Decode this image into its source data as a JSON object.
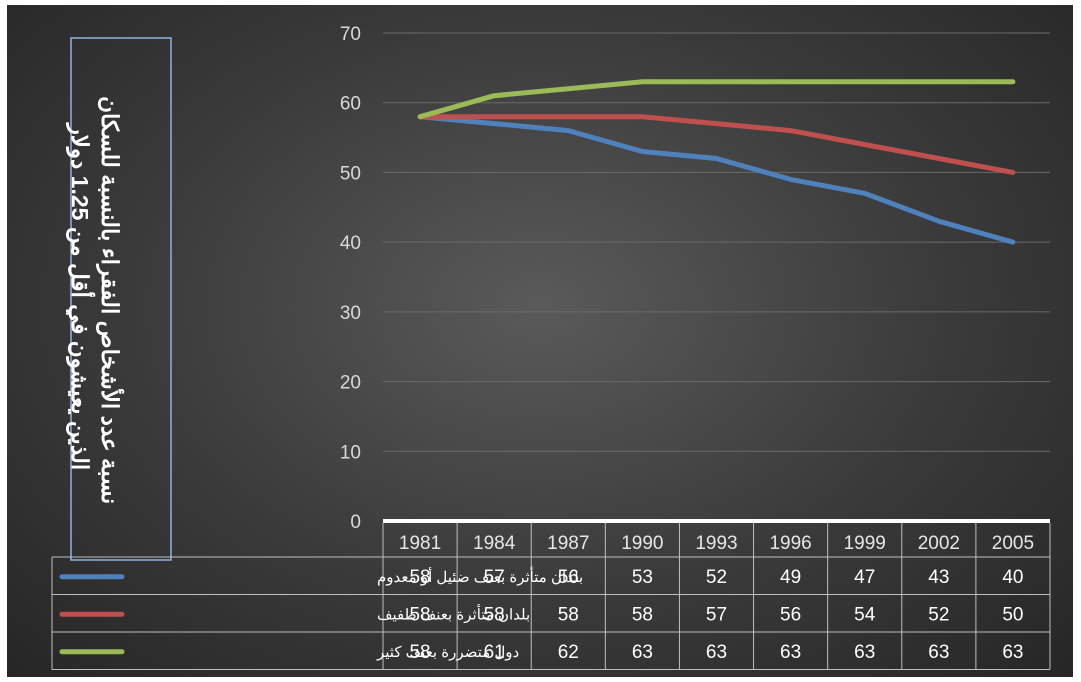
{
  "chart_data": {
    "type": "line",
    "title": "",
    "ylabel": "نسبة عدد الأشخاص الفقراء بالنسبة للسكان الذين يعيشون في أقل من 1.25 دولار",
    "ylim": [
      0,
      70
    ],
    "yticks": [
      0,
      10,
      20,
      30,
      40,
      50,
      60,
      70
    ],
    "categories": [
      "1981",
      "1984",
      "1987",
      "1990",
      "1993",
      "1996",
      "1999",
      "2002",
      "2005"
    ],
    "series": [
      {
        "name": "بلدان متأثرة بعنف ضئيل أو معدوم",
        "color": "#4f81bd",
        "values": [
          58,
          57,
          56,
          53,
          52,
          49,
          47,
          43,
          40
        ]
      },
      {
        "name": "بلدان متأثرة بعنف طفيف",
        "color": "#c0504d",
        "values": [
          58,
          58,
          58,
          58,
          57,
          56,
          54,
          52,
          50
        ]
      },
      {
        "name": "دول متضررة بعنف كثير",
        "color": "#9bbb59",
        "values": [
          58,
          61,
          62,
          63,
          63,
          63,
          63,
          63,
          63
        ]
      }
    ],
    "grid": true,
    "legend": "data-table"
  },
  "colors": {
    "background": "#3a3a3a",
    "gridline": "#6a6a6a",
    "table_border": "#bfbfbf",
    "title_box": "#8db3e2"
  }
}
